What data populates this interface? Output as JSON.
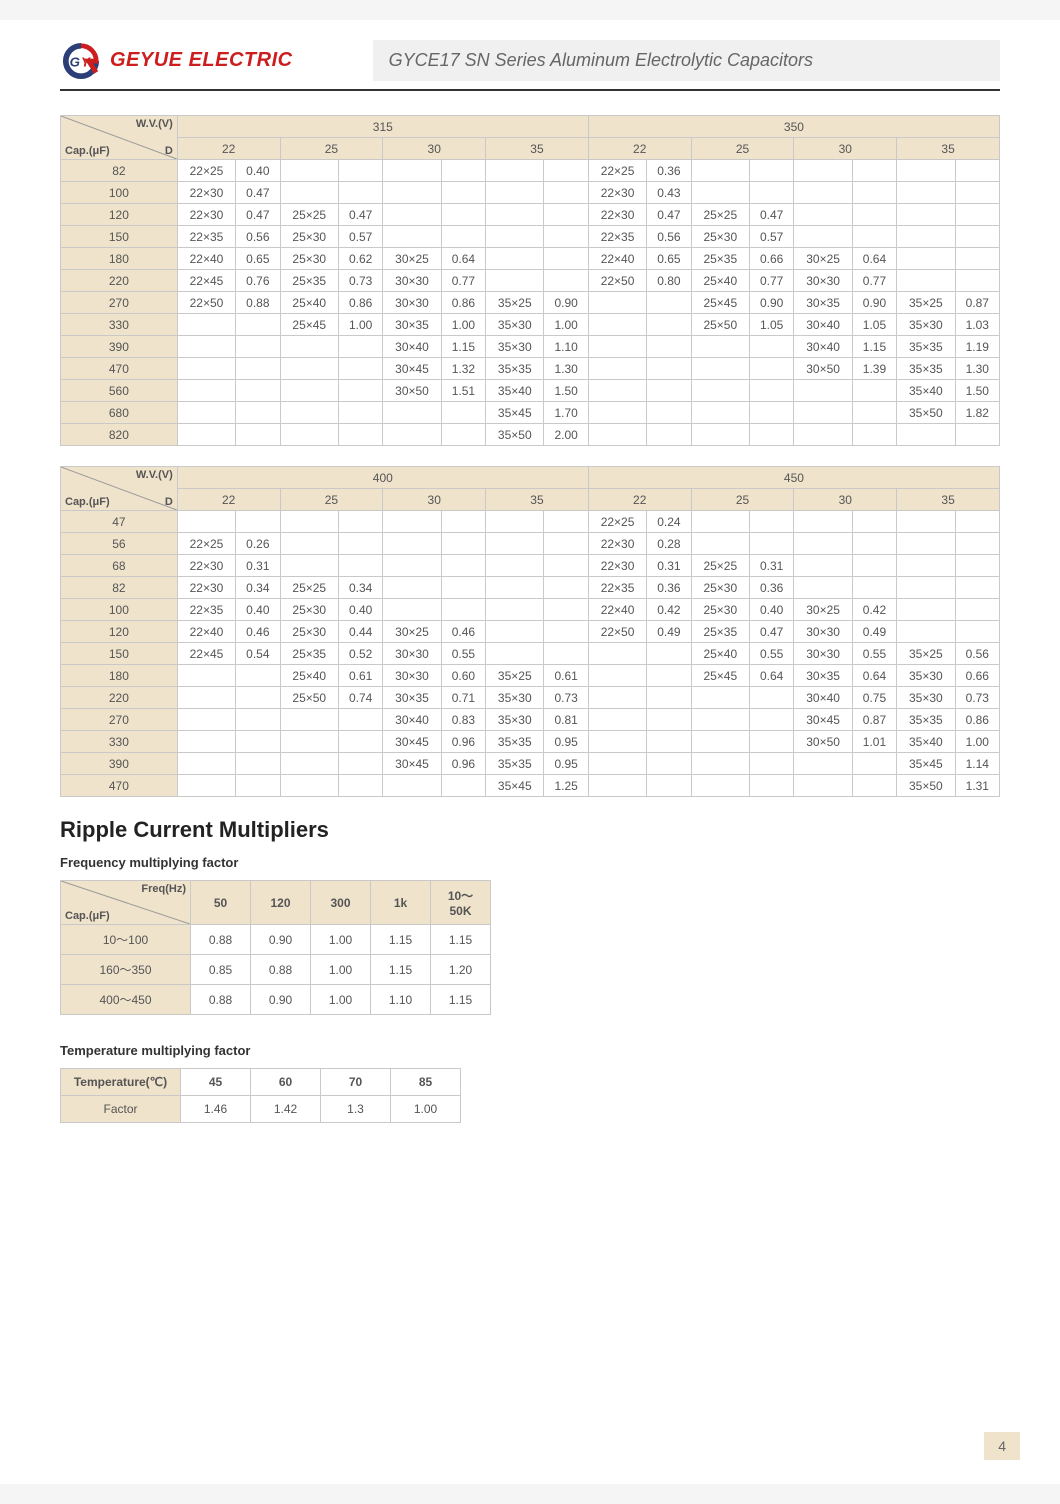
{
  "brand": "GEYUE ELECTRIC",
  "doc_title": "GYCE17 SN Series Aluminum Electrolytic Capacitors",
  "page_number": "4",
  "table_a": {
    "wv_label": "W.V.(V)",
    "cap_label": "Cap.(μF)",
    "d_label": "D",
    "voltages": [
      "315",
      "350"
    ],
    "diameters": [
      "22",
      "25",
      "30",
      "35"
    ],
    "rows": [
      {
        "cap": "82",
        "c": [
          [
            "22×25",
            "0.40"
          ],
          [
            "",
            ""
          ],
          [
            "",
            ""
          ],
          [
            "",
            ""
          ],
          [
            "22×25",
            "0.36"
          ],
          [
            "",
            ""
          ],
          [
            "",
            ""
          ],
          [
            "",
            ""
          ]
        ]
      },
      {
        "cap": "100",
        "c": [
          [
            "22×30",
            "0.47"
          ],
          [
            "",
            ""
          ],
          [
            "",
            ""
          ],
          [
            "",
            ""
          ],
          [
            "22×30",
            "0.43"
          ],
          [
            "",
            ""
          ],
          [
            "",
            ""
          ],
          [
            "",
            ""
          ]
        ]
      },
      {
        "cap": "120",
        "c": [
          [
            "22×30",
            "0.47"
          ],
          [
            "25×25",
            "0.47"
          ],
          [
            "",
            ""
          ],
          [
            "",
            ""
          ],
          [
            "22×30",
            "0.47"
          ],
          [
            "25×25",
            "0.47"
          ],
          [
            "",
            ""
          ],
          [
            "",
            ""
          ]
        ]
      },
      {
        "cap": "150",
        "c": [
          [
            "22×35",
            "0.56"
          ],
          [
            "25×30",
            "0.57"
          ],
          [
            "",
            ""
          ],
          [
            "",
            ""
          ],
          [
            "22×35",
            "0.56"
          ],
          [
            "25×30",
            "0.57"
          ],
          [
            "",
            ""
          ],
          [
            "",
            ""
          ]
        ]
      },
      {
        "cap": "180",
        "c": [
          [
            "22×40",
            "0.65"
          ],
          [
            "25×30",
            "0.62"
          ],
          [
            "30×25",
            "0.64"
          ],
          [
            "",
            ""
          ],
          [
            "22×40",
            "0.65"
          ],
          [
            "25×35",
            "0.66"
          ],
          [
            "30×25",
            "0.64"
          ],
          [
            "",
            ""
          ]
        ]
      },
      {
        "cap": "220",
        "c": [
          [
            "22×45",
            "0.76"
          ],
          [
            "25×35",
            "0.73"
          ],
          [
            "30×30",
            "0.77"
          ],
          [
            "",
            ""
          ],
          [
            "22×50",
            "0.80"
          ],
          [
            "25×40",
            "0.77"
          ],
          [
            "30×30",
            "0.77"
          ],
          [
            "",
            ""
          ]
        ]
      },
      {
        "cap": "270",
        "c": [
          [
            "22×50",
            "0.88"
          ],
          [
            "25×40",
            "0.86"
          ],
          [
            "30×30",
            "0.86"
          ],
          [
            "35×25",
            "0.90"
          ],
          [
            "",
            ""
          ],
          [
            "25×45",
            "0.90"
          ],
          [
            "30×35",
            "0.90"
          ],
          [
            "35×25",
            "0.87"
          ]
        ]
      },
      {
        "cap": "330",
        "c": [
          [
            "",
            ""
          ],
          [
            "25×45",
            "1.00"
          ],
          [
            "30×35",
            "1.00"
          ],
          [
            "35×30",
            "1.00"
          ],
          [
            "",
            ""
          ],
          [
            "25×50",
            "1.05"
          ],
          [
            "30×40",
            "1.05"
          ],
          [
            "35×30",
            "1.03"
          ]
        ]
      },
      {
        "cap": "390",
        "c": [
          [
            "",
            ""
          ],
          [
            "",
            ""
          ],
          [
            "30×40",
            "1.15"
          ],
          [
            "35×30",
            "1.10"
          ],
          [
            "",
            ""
          ],
          [
            "",
            ""
          ],
          [
            "30×40",
            "1.15"
          ],
          [
            "35×35",
            "1.19"
          ]
        ]
      },
      {
        "cap": "470",
        "c": [
          [
            "",
            ""
          ],
          [
            "",
            ""
          ],
          [
            "30×45",
            "1.32"
          ],
          [
            "35×35",
            "1.30"
          ],
          [
            "",
            ""
          ],
          [
            "",
            ""
          ],
          [
            "30×50",
            "1.39"
          ],
          [
            "35×35",
            "1.30"
          ]
        ]
      },
      {
        "cap": "560",
        "c": [
          [
            "",
            ""
          ],
          [
            "",
            ""
          ],
          [
            "30×50",
            "1.51"
          ],
          [
            "35×40",
            "1.50"
          ],
          [
            "",
            ""
          ],
          [
            "",
            ""
          ],
          [
            "",
            ""
          ],
          [
            "35×40",
            "1.50"
          ]
        ]
      },
      {
        "cap": "680",
        "c": [
          [
            "",
            ""
          ],
          [
            "",
            ""
          ],
          [
            "",
            ""
          ],
          [
            "35×45",
            "1.70"
          ],
          [
            "",
            ""
          ],
          [
            "",
            ""
          ],
          [
            "",
            ""
          ],
          [
            "35×50",
            "1.82"
          ]
        ]
      },
      {
        "cap": "820",
        "c": [
          [
            "",
            ""
          ],
          [
            "",
            ""
          ],
          [
            "",
            ""
          ],
          [
            "35×50",
            "2.00"
          ],
          [
            "",
            ""
          ],
          [
            "",
            ""
          ],
          [
            "",
            ""
          ],
          [
            "",
            ""
          ]
        ]
      }
    ]
  },
  "table_b": {
    "voltages": [
      "400",
      "450"
    ],
    "diameters": [
      "22",
      "25",
      "30",
      "35"
    ],
    "rows": [
      {
        "cap": "47",
        "c": [
          [
            "",
            ""
          ],
          [
            "",
            ""
          ],
          [
            "",
            ""
          ],
          [
            "",
            ""
          ],
          [
            "22×25",
            "0.24"
          ],
          [
            "",
            ""
          ],
          [
            "",
            ""
          ],
          [
            "",
            ""
          ]
        ]
      },
      {
        "cap": "56",
        "c": [
          [
            "22×25",
            "0.26"
          ],
          [
            "",
            ""
          ],
          [
            "",
            ""
          ],
          [
            "",
            ""
          ],
          [
            "22×30",
            "0.28"
          ],
          [
            "",
            ""
          ],
          [
            "",
            ""
          ],
          [
            "",
            ""
          ]
        ]
      },
      {
        "cap": "68",
        "c": [
          [
            "22×30",
            "0.31"
          ],
          [
            "",
            ""
          ],
          [
            "",
            ""
          ],
          [
            "",
            ""
          ],
          [
            "22×30",
            "0.31"
          ],
          [
            "25×25",
            "0.31"
          ],
          [
            "",
            ""
          ],
          [
            "",
            ""
          ]
        ]
      },
      {
        "cap": "82",
        "c": [
          [
            "22×30",
            "0.34"
          ],
          [
            "25×25",
            "0.34"
          ],
          [
            "",
            ""
          ],
          [
            "",
            ""
          ],
          [
            "22×35",
            "0.36"
          ],
          [
            "25×30",
            "0.36"
          ],
          [
            "",
            ""
          ],
          [
            "",
            ""
          ]
        ]
      },
      {
        "cap": "100",
        "c": [
          [
            "22×35",
            "0.40"
          ],
          [
            "25×30",
            "0.40"
          ],
          [
            "",
            ""
          ],
          [
            "",
            ""
          ],
          [
            "22×40",
            "0.42"
          ],
          [
            "25×30",
            "0.40"
          ],
          [
            "30×25",
            "0.42"
          ],
          [
            "",
            ""
          ]
        ]
      },
      {
        "cap": "120",
        "c": [
          [
            "22×40",
            "0.46"
          ],
          [
            "25×30",
            "0.44"
          ],
          [
            "30×25",
            "0.46"
          ],
          [
            "",
            ""
          ],
          [
            "22×50",
            "0.49"
          ],
          [
            "25×35",
            "0.47"
          ],
          [
            "30×30",
            "0.49"
          ],
          [
            "",
            ""
          ]
        ]
      },
      {
        "cap": "150",
        "c": [
          [
            "22×45",
            "0.54"
          ],
          [
            "25×35",
            "0.52"
          ],
          [
            "30×30",
            "0.55"
          ],
          [
            "",
            ""
          ],
          [
            "",
            ""
          ],
          [
            "25×40",
            "0.55"
          ],
          [
            "30×30",
            "0.55"
          ],
          [
            "35×25",
            "0.56"
          ]
        ]
      },
      {
        "cap": "180",
        "c": [
          [
            "",
            ""
          ],
          [
            "25×40",
            "0.61"
          ],
          [
            "30×30",
            "0.60"
          ],
          [
            "35×25",
            "0.61"
          ],
          [
            "",
            ""
          ],
          [
            "25×45",
            "0.64"
          ],
          [
            "30×35",
            "0.64"
          ],
          [
            "35×30",
            "0.66"
          ]
        ]
      },
      {
        "cap": "220",
        "c": [
          [
            "",
            ""
          ],
          [
            "25×50",
            "0.74"
          ],
          [
            "30×35",
            "0.71"
          ],
          [
            "35×30",
            "0.73"
          ],
          [
            "",
            ""
          ],
          [
            "",
            ""
          ],
          [
            "30×40",
            "0.75"
          ],
          [
            "35×30",
            "0.73"
          ]
        ]
      },
      {
        "cap": "270",
        "c": [
          [
            "",
            ""
          ],
          [
            "",
            ""
          ],
          [
            "30×40",
            "0.83"
          ],
          [
            "35×30",
            "0.81"
          ],
          [
            "",
            ""
          ],
          [
            "",
            ""
          ],
          [
            "30×45",
            "0.87"
          ],
          [
            "35×35",
            "0.86"
          ]
        ]
      },
      {
        "cap": "330",
        "c": [
          [
            "",
            ""
          ],
          [
            "",
            ""
          ],
          [
            "30×45",
            "0.96"
          ],
          [
            "35×35",
            "0.95"
          ],
          [
            "",
            ""
          ],
          [
            "",
            ""
          ],
          [
            "30×50",
            "1.01"
          ],
          [
            "35×40",
            "1.00"
          ]
        ]
      },
      {
        "cap": "390",
        "c": [
          [
            "",
            ""
          ],
          [
            "",
            ""
          ],
          [
            "30×45",
            "0.96"
          ],
          [
            "35×35",
            "0.95"
          ],
          [
            "",
            ""
          ],
          [
            "",
            ""
          ],
          [
            "",
            ""
          ],
          [
            "35×45",
            "1.14"
          ]
        ]
      },
      {
        "cap": "470",
        "c": [
          [
            "",
            ""
          ],
          [
            "",
            ""
          ],
          [
            "",
            ""
          ],
          [
            "35×45",
            "1.25"
          ],
          [
            "",
            ""
          ],
          [
            "",
            ""
          ],
          [
            "",
            ""
          ],
          [
            "35×50",
            "1.31"
          ]
        ]
      }
    ]
  },
  "ripple_title": "Ripple Current Multipliers",
  "freq_title": "Frequency multiplying factor",
  "freq_table": {
    "freq_label": "Freq(Hz)",
    "cap_label": "Cap.(μF)",
    "cols": [
      "50",
      "120",
      "300",
      "1k",
      "10～50K"
    ],
    "rows": [
      {
        "label": "10～100",
        "v": [
          "0.88",
          "0.90",
          "1.00",
          "1.15",
          "1.15"
        ]
      },
      {
        "label": "160～350",
        "v": [
          "0.85",
          "0.88",
          "1.00",
          "1.15",
          "1.20"
        ]
      },
      {
        "label": "400～450",
        "v": [
          "0.88",
          "0.90",
          "1.00",
          "1.10",
          "1.15"
        ]
      }
    ]
  },
  "temp_title": "Temperature multiplying factor",
  "temp_table": {
    "label": "Temperature(℃)",
    "factor_label": "Factor",
    "cols": [
      "45",
      "60",
      "70",
      "85"
    ],
    "vals": [
      "1.46",
      "1.42",
      "1.3",
      "1.00"
    ]
  }
}
